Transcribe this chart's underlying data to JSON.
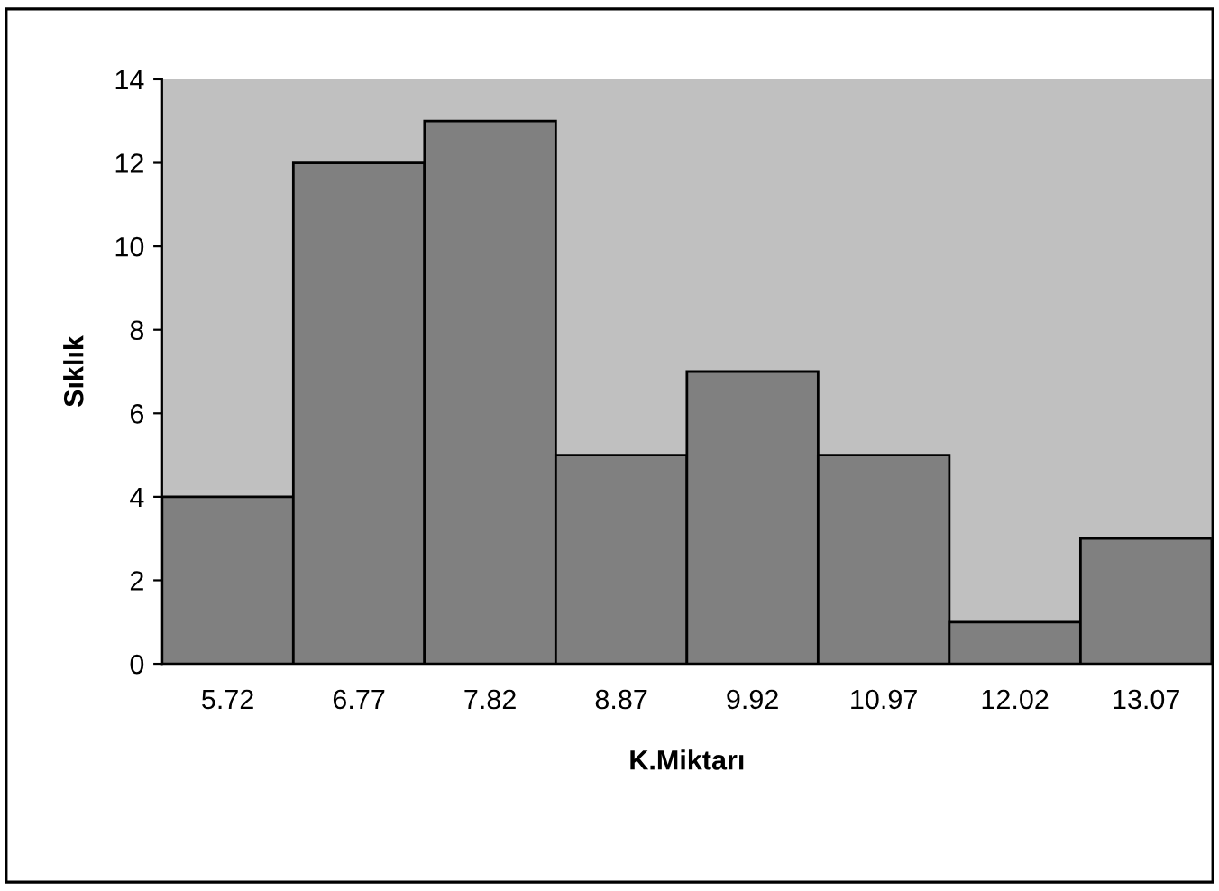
{
  "chart_data": {
    "type": "bar",
    "xlabel": "K.Miktarı",
    "ylabel": "Sıklık",
    "categories": [
      "5.72",
      "6.77",
      "7.82",
      "8.87",
      "9.92",
      "10.97",
      "12.02",
      "13.07"
    ],
    "values": [
      4,
      12,
      13,
      5,
      7,
      5,
      1,
      3
    ],
    "color": "#808080",
    "ylim": [
      0,
      14
    ],
    "yticks": [
      0,
      2,
      4,
      6,
      8,
      10,
      12,
      14
    ],
    "grid": false,
    "legend": false
  }
}
